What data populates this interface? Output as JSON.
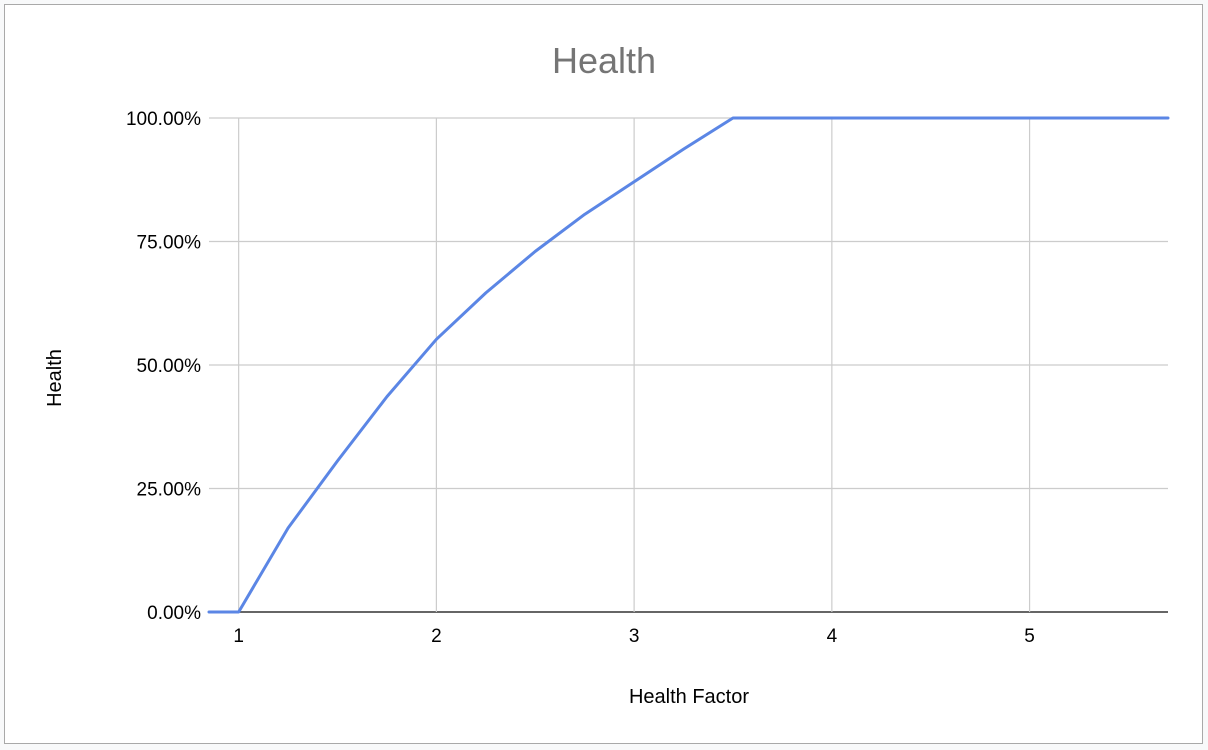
{
  "colors": {
    "line": "#5b86e5",
    "grid": "#cccccc",
    "baseline": "#333333",
    "title": "#757575"
  },
  "chart_data": {
    "type": "line",
    "title": "Health",
    "xlabel": "Health Factor",
    "ylabel": "Health",
    "xlim": [
      0.85,
      5.7
    ],
    "ylim": [
      0,
      100
    ],
    "x_ticks": [
      "1",
      "2",
      "3",
      "4",
      "5"
    ],
    "y_ticks": [
      "0.00%",
      "25.00%",
      "50.00%",
      "75.00%",
      "100.00%"
    ],
    "grid": true,
    "legend": "none",
    "series": [
      {
        "x": [
          0.85,
          1.0,
          1.25,
          1.5,
          1.75,
          2.0,
          2.25,
          2.5,
          2.75,
          3.0,
          3.25,
          3.5,
          4.0,
          4.5,
          5.0,
          5.5,
          5.7
        ],
        "y": [
          0,
          0,
          17,
          30.6,
          43.6,
          55.2,
          64.6,
          73.0,
          80.5,
          87.1,
          93.7,
          100,
          100,
          100,
          100,
          100,
          100
        ]
      }
    ]
  }
}
